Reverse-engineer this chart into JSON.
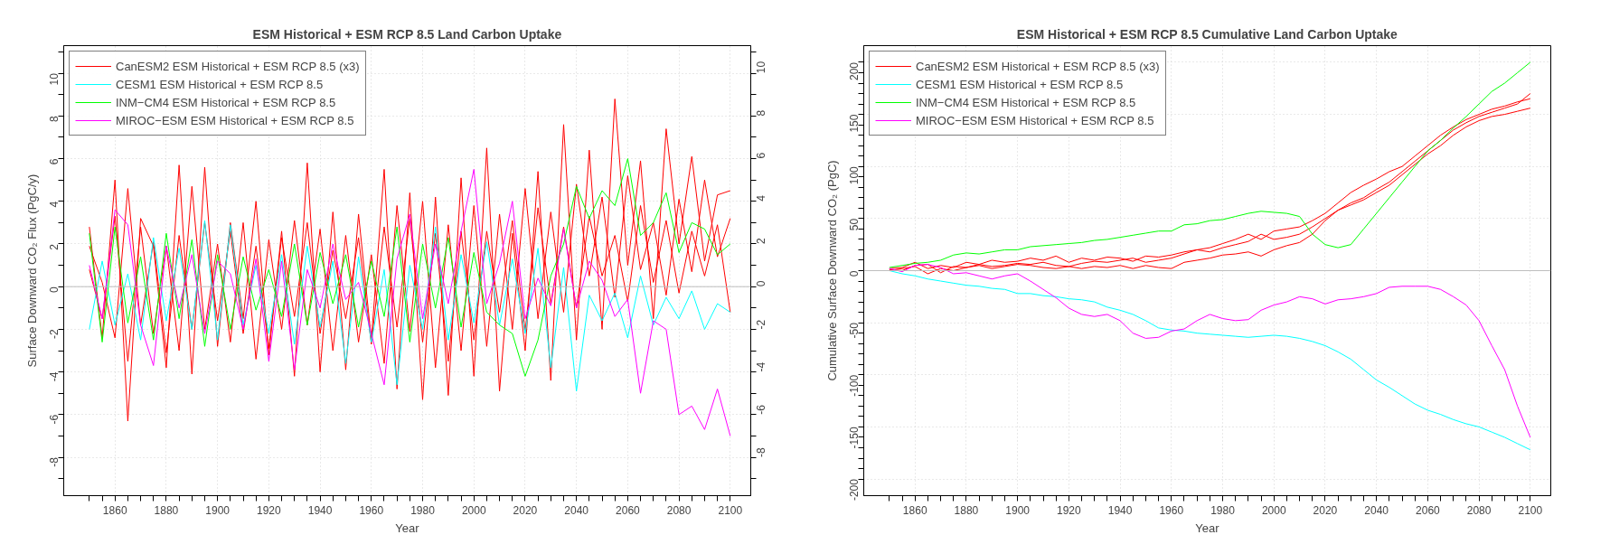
{
  "chart_data": [
    {
      "type": "line",
      "title": "ESM Historical + ESM RCP 8.5 Land Carbon Uptake",
      "xlabel": "Year",
      "ylabel": "Surface Downward CO₂ Flux (PgC/y)",
      "x": [
        1850,
        1855,
        1860,
        1865,
        1870,
        1875,
        1880,
        1885,
        1890,
        1895,
        1900,
        1905,
        1910,
        1915,
        1920,
        1925,
        1930,
        1935,
        1940,
        1945,
        1950,
        1955,
        1960,
        1965,
        1970,
        1975,
        1980,
        1985,
        1990,
        1995,
        2000,
        2005,
        2010,
        2015,
        2020,
        2025,
        2030,
        2035,
        2040,
        2045,
        2050,
        2055,
        2060,
        2065,
        2070,
        2075,
        2080,
        2085,
        2090,
        2095,
        2100
      ],
      "series": [
        {
          "name": "CanESM2 ESM Historical + ESM RCP 8.5 (x3)",
          "color": "#ff0000",
          "values": [
            2.8,
            -2.4,
            5.0,
            -6.3,
            3.2,
            1.9,
            -3.8,
            5.7,
            -4.1,
            5.6,
            -2.8,
            3.0,
            -1.5,
            4.0,
            -3.2,
            2.6,
            -4.2,
            5.8,
            -4.0,
            3.5,
            -3.9,
            3.4,
            -2.5,
            5.5,
            -4.8,
            4.4,
            -5.3,
            4.2,
            -5.1,
            5.1,
            -4.2,
            6.5,
            -4.9,
            2.5,
            -3.0,
            5.4,
            -4.4,
            7.6,
            -2.5,
            6.4,
            -2.0,
            8.8,
            1.0,
            5.9,
            -1.5,
            7.4,
            2.0,
            6.1,
            1.2,
            4.3,
            4.5
          ]
        },
        {
          "color": "#ff0000",
          "values": [
            0.8,
            -1.5,
            3.3,
            -3.5,
            2.8,
            -2.2,
            1.9,
            -3.0,
            4.7,
            -2.0,
            2.0,
            -2.6,
            3.0,
            -3.4,
            2.2,
            -2.0,
            3.1,
            -1.8,
            2.7,
            -3.0,
            2.4,
            -2.6,
            1.5,
            -3.6,
            3.8,
            -2.1,
            4.0,
            -3.8,
            2.9,
            -3.0,
            3.8,
            -2.8,
            3.4,
            -2.0,
            4.6,
            -1.5,
            3.5,
            -1.2,
            4.8,
            0.5,
            4.2,
            -0.5,
            5.2,
            0.8,
            3.0,
            -0.4,
            4.1,
            0.7,
            5.0,
            1.4,
            3.2
          ]
        },
        {
          "color": "#ff0000",
          "values": [
            1.9,
            0.2,
            -2.4,
            4.6,
            -1.8,
            2.1,
            -3.1,
            2.4,
            -2.0,
            3.0,
            -1.6,
            2.6,
            -2.2,
            1.9,
            -2.9,
            2.3,
            -1.4,
            3.0,
            -2.2,
            1.7,
            -1.5,
            2.3,
            -2.7,
            2.8,
            -1.9,
            3.2,
            -2.6,
            2.5,
            -3.5,
            2.6,
            -2.5,
            2.6,
            -1.2,
            3.1,
            -2.1,
            3.7,
            -0.8,
            2.8,
            -1.0,
            3.3,
            0.5,
            2.4,
            -0.7,
            3.8,
            0.2,
            3.1,
            -0.3,
            2.6,
            0.5,
            2.9,
            -1.2
          ]
        },
        {
          "name": "CESM1 ESM Historical + ESM RCP 8.5",
          "color": "#00ffff",
          "values": [
            -2.0,
            1.2,
            -1.8,
            0.6,
            -2.5,
            2.3,
            -1.6,
            1.8,
            -2.0,
            3.1,
            -2.5,
            2.9,
            -1.8,
            1.0,
            -2.2,
            1.5,
            -2.7,
            1.9,
            -1.9,
            1.2,
            -3.6,
            1.4,
            -2.6,
            0.8,
            -4.6,
            1.0,
            -2.0,
            2.8,
            -2.5,
            1.5,
            -1.7,
            2.1,
            -1.8,
            1.3,
            -2.2,
            1.8,
            -3.8,
            0.9,
            -4.9,
            -0.4,
            -1.6,
            -0.3,
            -2.4,
            0.5,
            -1.8,
            -0.5,
            -1.5,
            -0.2,
            -2.0,
            -0.8,
            -1.2
          ]
        },
        {
          "name": "INM−CM4 ESM Historical + ESM RCP 8.5",
          "color": "#00ff00",
          "values": [
            2.5,
            -2.6,
            2.8,
            -1.7,
            1.4,
            -2.5,
            2.5,
            -1.5,
            2.2,
            -2.8,
            1.5,
            -2.0,
            1.4,
            -1.1,
            0.8,
            -1.4,
            2.0,
            -1.8,
            1.6,
            -0.8,
            1.5,
            -1.9,
            1.2,
            -1.4,
            2.8,
            -2.6,
            2.0,
            -1.0,
            2.3,
            -1.9,
            1.6,
            -1.2,
            -1.8,
            -2.2,
            -4.2,
            -2.5,
            0.5,
            2.0,
            4.7,
            3.2,
            4.5,
            3.8,
            6.0,
            2.4,
            3.0,
            4.4,
            1.6,
            3.0,
            2.7,
            1.5,
            2.0
          ]
        },
        {
          "name": "MIROC−ESM ESM Historical + ESM RCP 8.5",
          "color": "#ff00ff",
          "values": [
            1.0,
            -1.5,
            3.6,
            2.9,
            -1.8,
            -3.7,
            1.9,
            -1.0,
            1.5,
            -2.2,
            1.2,
            0.6,
            -2.0,
            1.3,
            -3.5,
            1.2,
            -3.9,
            0.8,
            -1.0,
            2.0,
            -0.6,
            0.2,
            -2.2,
            -4.6,
            1.3,
            3.4,
            -1.5,
            2.0,
            -0.8,
            2.6,
            5.5,
            -0.8,
            1.1,
            4.0,
            -1.5,
            0.4,
            -0.9,
            2.7,
            -1.0,
            1.2,
            0.3,
            -1.4,
            -0.6,
            -5.0,
            -1.6,
            -2.0,
            -6.0,
            -5.6,
            -6.7,
            -4.8,
            -7.0
          ]
        }
      ],
      "xlim": [
        1840,
        2108
      ],
      "xticks": [
        {
          "value": 1850,
          "label": null
        },
        {
          "value": 1855,
          "label": null
        },
        1860,
        {
          "value": 1865,
          "label": null
        },
        {
          "value": 1870,
          "label": null
        },
        {
          "value": 1875,
          "label": null
        },
        1880,
        {
          "value": 1885,
          "label": null
        },
        {
          "value": 1890,
          "label": null
        },
        {
          "value": 1895,
          "label": null
        },
        1900,
        {
          "value": 1905,
          "label": null
        },
        {
          "value": 1910,
          "label": null
        },
        {
          "value": 1915,
          "label": null
        },
        1920,
        {
          "value": 1925,
          "label": null
        },
        {
          "value": 1930,
          "label": null
        },
        {
          "value": 1935,
          "label": null
        },
        1940,
        {
          "value": 1945,
          "label": null
        },
        {
          "value": 1950,
          "label": null
        },
        {
          "value": 1955,
          "label": null
        },
        1960,
        {
          "value": 1965,
          "label": null
        },
        {
          "value": 1970,
          "label": null
        },
        {
          "value": 1975,
          "label": null
        },
        1980,
        {
          "value": 1985,
          "label": null
        },
        {
          "value": 1990,
          "label": null
        },
        {
          "value": 1995,
          "label": null
        },
        2000,
        {
          "value": 2005,
          "label": null
        },
        {
          "value": 2010,
          "label": null
        },
        {
          "value": 2015,
          "label": null
        },
        2020,
        {
          "value": 2025,
          "label": null
        },
        {
          "value": 2030,
          "label": null
        },
        {
          "value": 2035,
          "label": null
        },
        2040,
        {
          "value": 2045,
          "label": null
        },
        {
          "value": 2050,
          "label": null
        },
        {
          "value": 2055,
          "label": null
        },
        2060,
        {
          "value": 2065,
          "label": null
        },
        {
          "value": 2070,
          "label": null
        },
        {
          "value": 2075,
          "label": null
        },
        2080,
        {
          "value": 2085,
          "label": null
        },
        {
          "value": 2090,
          "label": null
        },
        {
          "value": 2095,
          "label": null
        },
        2100
      ],
      "ylim": [
        -9.8,
        11.3
      ],
      "yticks": [
        {
          "value": -9,
          "label": null
        },
        -8,
        {
          "value": -7,
          "label": null
        },
        -6,
        {
          "value": -5,
          "label": null
        },
        -4,
        {
          "value": -3,
          "label": null
        },
        -2,
        {
          "value": -1,
          "label": null
        },
        0,
        {
          "value": 1,
          "label": null
        },
        2,
        {
          "value": 3,
          "label": null
        },
        4,
        {
          "value": 5,
          "label": null
        },
        6,
        {
          "value": 7,
          "label": null
        },
        8,
        {
          "value": 9,
          "label": null
        },
        10,
        {
          "value": 11,
          "label": null
        }
      ],
      "y2lim": [
        -9.8,
        11.3
      ],
      "y2ticks": [
        {
          "value": -9,
          "label": null
        },
        -8,
        {
          "value": -7,
          "label": null
        },
        -6,
        {
          "value": -5,
          "label": null
        },
        -4,
        {
          "value": -3,
          "label": null
        },
        -2,
        {
          "value": -1,
          "label": null
        },
        0,
        {
          "value": 1,
          "label": null
        },
        2,
        {
          "value": 3,
          "label": null
        },
        4,
        {
          "value": 5,
          "label": null
        },
        6,
        {
          "value": 7,
          "label": null
        },
        8,
        {
          "value": 9,
          "label": null
        },
        10,
        {
          "value": 11,
          "label": null
        }
      ],
      "ref_lines": [
        {
          "axis": "y",
          "value": 0,
          "color": "#bebebe"
        }
      ],
      "grid": true,
      "legend": "top left",
      "line_style": "solid",
      "marker": "none"
    },
    {
      "type": "line",
      "title": "ESM Historical + ESM RCP 8.5 Cumulative Land Carbon Uptake",
      "xlabel": "Year",
      "ylabel": "Cumulative Surface Downward CO₂ (PgC)",
      "x": [
        1850,
        1855,
        1860,
        1865,
        1870,
        1875,
        1880,
        1885,
        1890,
        1895,
        1900,
        1905,
        1910,
        1915,
        1920,
        1925,
        1930,
        1935,
        1940,
        1945,
        1950,
        1955,
        1960,
        1965,
        1970,
        1975,
        1980,
        1985,
        1990,
        1995,
        2000,
        2005,
        2010,
        2015,
        2020,
        2025,
        2030,
        2035,
        2040,
        2045,
        2050,
        2055,
        2060,
        2065,
        2070,
        2075,
        2080,
        2085,
        2090,
        2095,
        2100
      ],
      "series": [
        {
          "name": "CanESM2 ESM Historical + ESM RCP 8.5 (x3)",
          "color": "#ff0000",
          "values": [
            2,
            3,
            8,
            2,
            5,
            3,
            8,
            6,
            10,
            8,
            9,
            12,
            10,
            14,
            8,
            12,
            10,
            13,
            12,
            9,
            14,
            13,
            15,
            18,
            20,
            22,
            26,
            30,
            35,
            30,
            38,
            40,
            42,
            48,
            55,
            65,
            75,
            82,
            88,
            95,
            100,
            110,
            120,
            130,
            138,
            145,
            150,
            155,
            158,
            162,
            165
          ]
        },
        {
          "color": "#ff0000",
          "values": [
            1,
            0,
            5,
            6,
            -2,
            4,
            3,
            6,
            4,
            5,
            7,
            6,
            8,
            5,
            4,
            7,
            9,
            8,
            10,
            12,
            8,
            10,
            12,
            16,
            20,
            18,
            22,
            25,
            28,
            35,
            30,
            32,
            35,
            42,
            50,
            58,
            65,
            70,
            78,
            85,
            95,
            105,
            115,
            125,
            135,
            142,
            148,
            152,
            156,
            160,
            170
          ]
        },
        {
          "color": "#ff0000",
          "values": [
            0,
            2,
            4,
            -3,
            2,
            0,
            3,
            5,
            2,
            4,
            6,
            5,
            3,
            2,
            4,
            2,
            4,
            3,
            5,
            2,
            5,
            3,
            2,
            8,
            10,
            12,
            15,
            16,
            18,
            14,
            20,
            24,
            27,
            35,
            48,
            58,
            63,
            68,
            75,
            82,
            92,
            102,
            112,
            120,
            130,
            138,
            144,
            148,
            150,
            153,
            156
          ]
        },
        {
          "name": "CESM1 ESM Historical + ESM RCP 8.5",
          "color": "#00ffff",
          "values": [
            0,
            -3,
            -5,
            -8,
            -10,
            -12,
            -14,
            -15,
            -17,
            -18,
            -22,
            -22,
            -24,
            -25,
            -27,
            -28,
            -30,
            -35,
            -38,
            -42,
            -48,
            -55,
            -57,
            -58,
            -60,
            -61,
            -62,
            -63,
            -64,
            -63,
            -62,
            -63,
            -65,
            -68,
            -72,
            -78,
            -85,
            -95,
            -105,
            -112,
            -120,
            -128,
            -134,
            -138,
            -143,
            -147,
            -150,
            -155,
            -160,
            -166,
            -172
          ]
        },
        {
          "name": "INM−CM4 ESM Historical + ESM RCP 8.5",
          "color": "#00ff00",
          "values": [
            3,
            5,
            7,
            8,
            10,
            15,
            17,
            16,
            18,
            20,
            20,
            23,
            24,
            25,
            26,
            27,
            29,
            30,
            32,
            34,
            36,
            38,
            38,
            44,
            45,
            48,
            49,
            52,
            55,
            57,
            56,
            55,
            52,
            35,
            25,
            22,
            25,
            40,
            55,
            70,
            85,
            100,
            115,
            125,
            137,
            148,
            160,
            172,
            180,
            190,
            200
          ]
        },
        {
          "name": "MIROC−ESM ESM Historical + ESM RCP 8.5",
          "color": "#ff00ff",
          "values": [
            2,
            -1,
            5,
            6,
            3,
            -3,
            -2,
            -5,
            -8,
            -5,
            -3,
            -10,
            -18,
            -26,
            -36,
            -42,
            -44,
            -42,
            -48,
            -60,
            -65,
            -64,
            -58,
            -56,
            -48,
            -42,
            -46,
            -48,
            -47,
            -38,
            -33,
            -30,
            -25,
            -27,
            -32,
            -28,
            -27,
            -25,
            -22,
            -16,
            -15,
            -15,
            -15,
            -18,
            -25,
            -33,
            -48,
            -72,
            -95,
            -130,
            -160
          ]
        }
      ],
      "xlim": [
        1840,
        2108
      ],
      "xticks": [
        {
          "value": 1850,
          "label": null
        },
        {
          "value": 1855,
          "label": null
        },
        1860,
        {
          "value": 1865,
          "label": null
        },
        {
          "value": 1870,
          "label": null
        },
        {
          "value": 1875,
          "label": null
        },
        1880,
        {
          "value": 1885,
          "label": null
        },
        {
          "value": 1890,
          "label": null
        },
        {
          "value": 1895,
          "label": null
        },
        1900,
        {
          "value": 1905,
          "label": null
        },
        {
          "value": 1910,
          "label": null
        },
        {
          "value": 1915,
          "label": null
        },
        1920,
        {
          "value": 1925,
          "label": null
        },
        {
          "value": 1930,
          "label": null
        },
        {
          "value": 1935,
          "label": null
        },
        1940,
        {
          "value": 1945,
          "label": null
        },
        {
          "value": 1950,
          "label": null
        },
        {
          "value": 1955,
          "label": null
        },
        1960,
        {
          "value": 1965,
          "label": null
        },
        {
          "value": 1970,
          "label": null
        },
        {
          "value": 1975,
          "label": null
        },
        1980,
        {
          "value": 1985,
          "label": null
        },
        {
          "value": 1990,
          "label": null
        },
        {
          "value": 1995,
          "label": null
        },
        2000,
        {
          "value": 2005,
          "label": null
        },
        {
          "value": 2010,
          "label": null
        },
        {
          "value": 2015,
          "label": null
        },
        2020,
        {
          "value": 2025,
          "label": null
        },
        {
          "value": 2030,
          "label": null
        },
        {
          "value": 2035,
          "label": null
        },
        2040,
        {
          "value": 2045,
          "label": null
        },
        {
          "value": 2050,
          "label": null
        },
        {
          "value": 2055,
          "label": null
        },
        2060,
        {
          "value": 2065,
          "label": null
        },
        {
          "value": 2070,
          "label": null
        },
        {
          "value": 2075,
          "label": null
        },
        2080,
        {
          "value": 2085,
          "label": null
        },
        {
          "value": 2090,
          "label": null
        },
        {
          "value": 2095,
          "label": null
        },
        2100
      ],
      "ylim": [
        -216,
        216
      ],
      "yticks": [
        -200,
        {
          "value": -190,
          "label": null
        },
        {
          "value": -180,
          "label": null
        },
        {
          "value": -170,
          "label": null
        },
        {
          "value": -160,
          "label": null
        },
        -150,
        {
          "value": -140,
          "label": null
        },
        {
          "value": -130,
          "label": null
        },
        {
          "value": -120,
          "label": null
        },
        {
          "value": -110,
          "label": null
        },
        -100,
        {
          "value": -90,
          "label": null
        },
        {
          "value": -80,
          "label": null
        },
        {
          "value": -70,
          "label": null
        },
        {
          "value": -60,
          "label": null
        },
        -50,
        {
          "value": -40,
          "label": null
        },
        {
          "value": -30,
          "label": null
        },
        {
          "value": -20,
          "label": null
        },
        {
          "value": -10,
          "label": null
        },
        0,
        {
          "value": 10,
          "label": null
        },
        {
          "value": 20,
          "label": null
        },
        {
          "value": 30,
          "label": null
        },
        {
          "value": 40,
          "label": null
        },
        50,
        {
          "value": 60,
          "label": null
        },
        {
          "value": 70,
          "label": null
        },
        {
          "value": 80,
          "label": null
        },
        {
          "value": 90,
          "label": null
        },
        100,
        {
          "value": 110,
          "label": null
        },
        {
          "value": 120,
          "label": null
        },
        {
          "value": 130,
          "label": null
        },
        {
          "value": 140,
          "label": null
        },
        150,
        {
          "value": 160,
          "label": null
        },
        {
          "value": 170,
          "label": null
        },
        {
          "value": 180,
          "label": null
        },
        {
          "value": 190,
          "label": null
        },
        200
      ],
      "ref_lines": [
        {
          "axis": "y",
          "value": 0,
          "color": "#bebebe"
        }
      ],
      "grid": true,
      "legend": "top left",
      "line_style": "solid",
      "marker": "none"
    }
  ]
}
